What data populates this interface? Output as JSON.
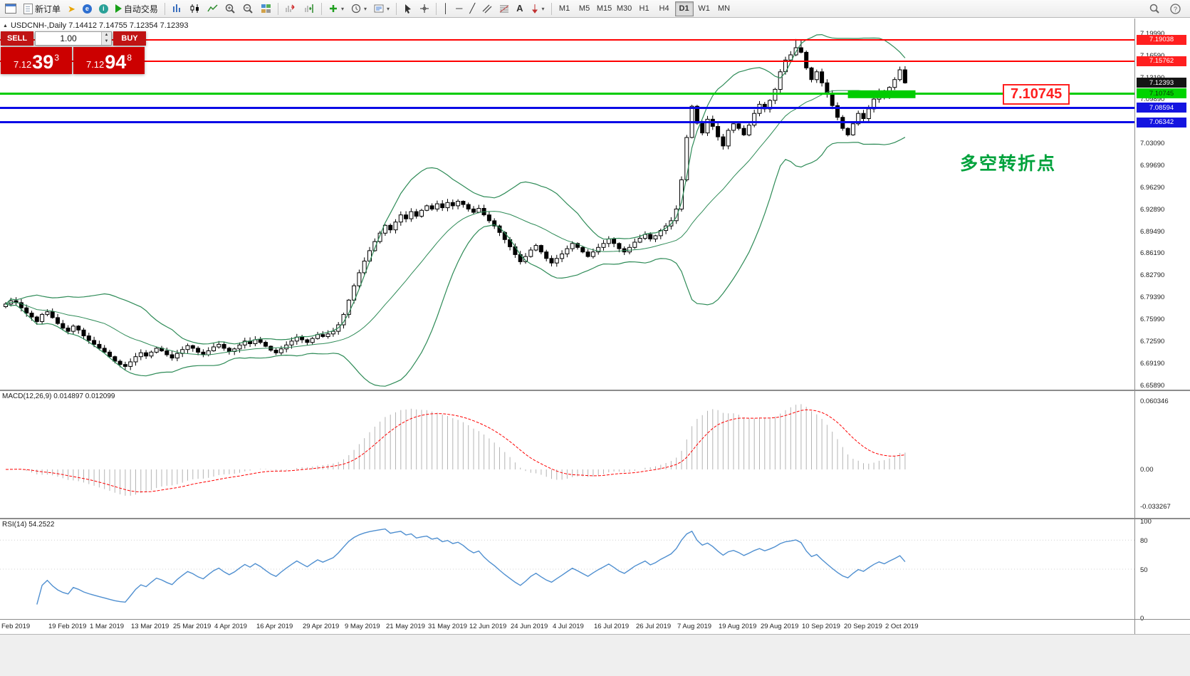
{
  "toolbar": {
    "new_order": "新订单",
    "autotrading": "自动交易",
    "timeframes": [
      "M1",
      "M5",
      "M15",
      "M30",
      "H1",
      "H4",
      "D1",
      "W1",
      "MN"
    ],
    "active_timeframe": "D1"
  },
  "ohlc_bar": {
    "text": "USDCNH-,Daily 7.14412 7.14755 7.12354 7.12393"
  },
  "trade_panel": {
    "sell_label": "SELL",
    "buy_label": "BUY",
    "volume": "1.00",
    "bid": {
      "prefix": "7.12",
      "big": "39",
      "sup": "3"
    },
    "ask": {
      "prefix": "7.12",
      "big": "94",
      "sup": "8"
    }
  },
  "annotations": {
    "turning_point": "多空转折点",
    "price_callout": "7.10745"
  },
  "price_axis": {
    "labels": [
      "7.19990",
      "7.16590",
      "7.13190",
      "7.09890",
      "7.06490",
      "7.03090",
      "6.99690",
      "6.96290",
      "6.92890",
      "6.89490",
      "6.86190",
      "6.82790",
      "6.79390",
      "6.75990",
      "6.72590",
      "6.69190",
      "6.65890"
    ],
    "badges": [
      {
        "text": "7.19038",
        "bg": "#ff1f1f",
        "fg": "#ffffff",
        "price": 7.19038
      },
      {
        "text": "7.15762",
        "bg": "#ff1f1f",
        "fg": "#ffffff",
        "price": 7.15762
      },
      {
        "text": "7.12393",
        "bg": "#141414",
        "fg": "#ffffff",
        "price": 7.12393
      },
      {
        "text": "7.10745",
        "bg": "#00d400",
        "fg": "#063306",
        "price": 7.10745
      },
      {
        "text": "7.08594",
        "bg": "#1414e0",
        "fg": "#ffffff",
        "price": 7.08594
      },
      {
        "text": "7.06342",
        "bg": "#1414e0",
        "fg": "#ffffff",
        "price": 7.06342
      }
    ]
  },
  "hlines": [
    {
      "price": 7.19038,
      "color": "#ff0000",
      "width": 2
    },
    {
      "price": 7.15762,
      "color": "#ff0000",
      "width": 2
    },
    {
      "price": 7.10745,
      "color": "#00cc00",
      "width": 3
    },
    {
      "price": 7.08594,
      "color": "#0a0ae6",
      "width": 3
    },
    {
      "price": 7.06342,
      "color": "#0a0ae6",
      "width": 3
    }
  ],
  "zone_box": {
    "bar_start": 162,
    "bar_end": 175,
    "price_top": 7.1125,
    "price_bottom": 7.1005,
    "color": "#00cc00"
  },
  "macd_panel": {
    "label": "MACD(12,26,9) 0.014897 0.012099",
    "axis_labels": [
      "0.060346",
      "0.00",
      "-0.033267"
    ]
  },
  "rsi_panel": {
    "label": "RSI(14) 54.2522",
    "axis_labels": [
      "100",
      "80",
      "50",
      "0"
    ]
  },
  "date_axis": [
    {
      "label": "Feb 2019",
      "bar": 0
    },
    {
      "label": "19 Feb 2019",
      "bar": 12
    },
    {
      "label": "1 Mar 2019",
      "bar": 20
    },
    {
      "label": "13 Mar 2019",
      "bar": 28
    },
    {
      "label": "25 Mar 2019",
      "bar": 36
    },
    {
      "label": "4 Apr 2019",
      "bar": 44
    },
    {
      "label": "16 Apr 2019",
      "bar": 52
    },
    {
      "label": "29 Apr 2019",
      "bar": 61
    },
    {
      "label": "9 May 2019",
      "bar": 69
    },
    {
      "label": "21 May 2019",
      "bar": 77
    },
    {
      "label": "31 May 2019",
      "bar": 85
    },
    {
      "label": "12 Jun 2019",
      "bar": 93
    },
    {
      "label": "24 Jun 2019",
      "bar": 101
    },
    {
      "label": "4 Jul 2019",
      "bar": 109
    },
    {
      "label": "16 Jul 2019",
      "bar": 117
    },
    {
      "label": "26 Jul 2019",
      "bar": 125
    },
    {
      "label": "7 Aug 2019",
      "bar": 133
    },
    {
      "label": "19 Aug 2019",
      "bar": 141
    },
    {
      "label": "29 Aug 2019",
      "bar": 149
    },
    {
      "label": "10 Sep 2019",
      "bar": 157
    },
    {
      "label": "20 Sep 2019",
      "bar": 165
    },
    {
      "label": "2 Oct 2019",
      "bar": 173
    }
  ],
  "chart_data": {
    "type": "candlestick",
    "symbol": "USDCNH-",
    "period": "Daily",
    "ohlc_display": {
      "open": "7.14412",
      "high": "7.14755",
      "low": "7.12354",
      "close": "7.12393"
    },
    "price_axis_range": [
      6.6589,
      7.1999
    ],
    "indicators": {
      "bollinger": [
        20,
        2
      ],
      "macd": [
        12,
        26,
        9
      ],
      "rsi": [
        14
      ]
    },
    "closes": [
      6.784,
      6.789,
      6.786,
      6.778,
      6.77,
      6.764,
      6.757,
      6.768,
      6.772,
      6.763,
      6.754,
      6.747,
      6.742,
      6.75,
      6.744,
      6.735,
      6.728,
      6.722,
      6.716,
      6.71,
      6.703,
      6.696,
      6.691,
      6.688,
      6.695,
      6.703,
      6.709,
      6.704,
      6.71,
      6.716,
      6.712,
      6.706,
      6.701,
      6.708,
      6.714,
      6.72,
      6.716,
      6.71,
      6.706,
      6.712,
      6.718,
      6.722,
      6.716,
      6.711,
      6.715,
      6.721,
      6.727,
      6.723,
      6.729,
      6.725,
      6.719,
      6.713,
      6.709,
      6.715,
      6.721,
      6.727,
      6.733,
      6.729,
      6.725,
      6.731,
      6.737,
      6.734,
      6.738,
      6.742,
      6.752,
      6.768,
      6.79,
      6.812,
      6.832,
      6.85,
      6.866,
      6.88,
      6.893,
      6.905,
      6.898,
      6.91,
      6.921,
      6.915,
      6.926,
      6.919,
      6.928,
      6.935,
      6.93,
      6.938,
      6.932,
      6.94,
      6.935,
      6.942,
      6.937,
      6.93,
      6.925,
      6.931,
      6.921,
      6.912,
      6.904,
      6.894,
      6.883,
      6.872,
      6.86,
      6.849,
      6.857,
      6.867,
      6.874,
      6.864,
      6.854,
      6.847,
      6.854,
      6.861,
      6.869,
      6.877,
      6.871,
      6.864,
      6.857,
      6.864,
      6.871,
      6.877,
      6.884,
      6.877,
      6.869,
      6.864,
      6.871,
      6.879,
      6.885,
      6.891,
      6.884,
      6.889,
      6.897,
      6.904,
      6.912,
      6.93,
      6.975,
      7.04,
      7.088,
      7.062,
      7.047,
      7.068,
      7.057,
      7.041,
      7.027,
      7.051,
      7.061,
      7.054,
      7.044,
      7.059,
      7.077,
      7.091,
      7.084,
      7.097,
      7.114,
      7.141,
      7.159,
      7.167,
      7.178,
      7.171,
      7.147,
      7.129,
      7.141,
      7.124,
      7.107,
      7.089,
      7.071,
      7.054,
      7.044,
      7.061,
      7.077,
      7.069,
      7.084,
      7.099,
      7.111,
      7.104,
      7.117,
      7.129,
      7.144,
      7.124
    ]
  }
}
